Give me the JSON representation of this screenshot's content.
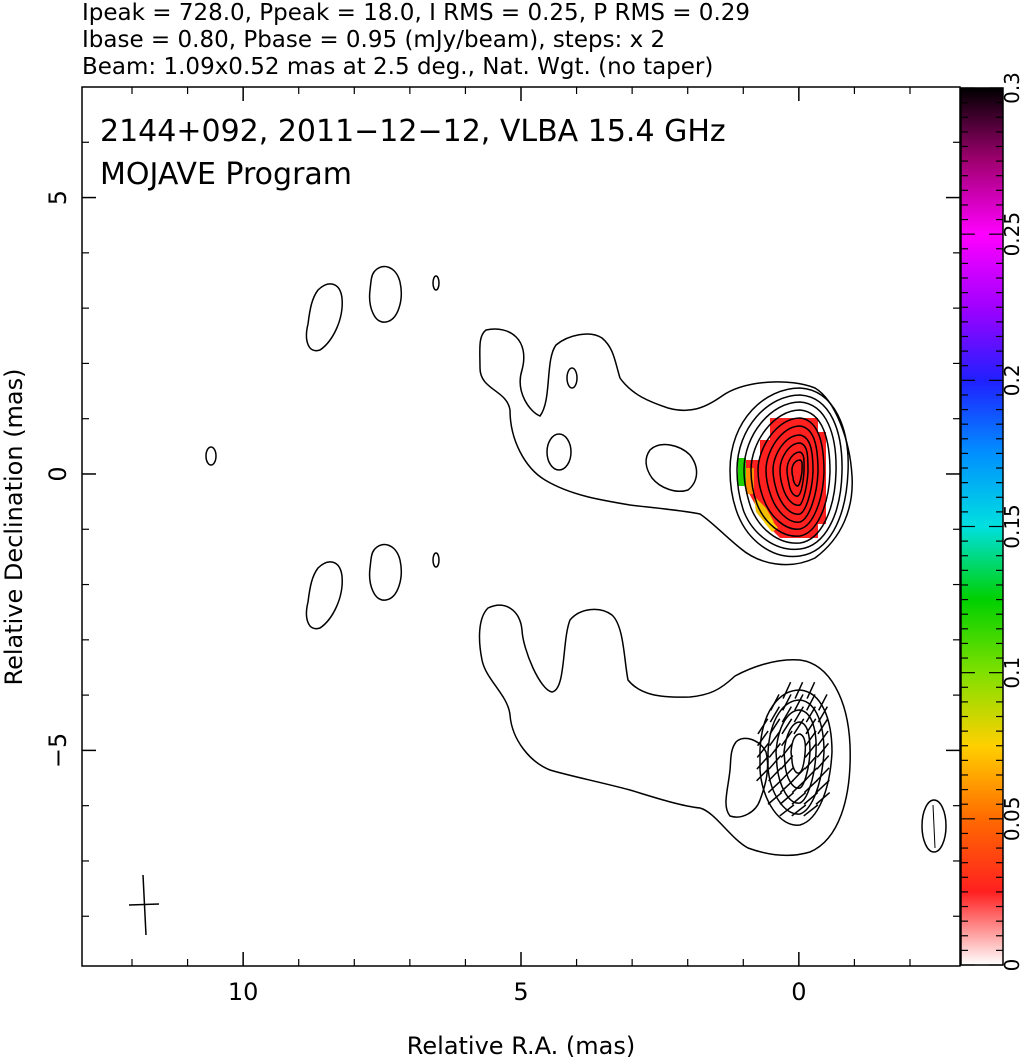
{
  "header": {
    "line1": "Ipeak = 728.0, Ppeak = 18.0, I RMS = 0.25, P RMS = 0.29",
    "line2": "Ibase = 0.80, Pbase = 0.95 (mJy/beam), steps: x 2",
    "line3": "Beam: 1.09x0.52 mas at 2.5 deg., Nat. Wgt. (no taper)"
  },
  "plot": {
    "title_line1": "2144+092, 2011−12−12, VLBA 15.4 GHz",
    "title_line2": "MOJAVE Program"
  },
  "chart_data": {
    "type": "contour",
    "xlabel": "Relative R.A. (mas)",
    "ylabel": "Relative Declination (mas)",
    "xlim": [
      12.9,
      -2.9
    ],
    "ylim": [
      -8.9,
      7.0
    ],
    "x_ticks": [
      {
        "value": 10,
        "label": "10"
      },
      {
        "value": 5,
        "label": "5"
      },
      {
        "value": 0,
        "label": "0"
      }
    ],
    "y_ticks": [
      {
        "value": 5,
        "label": "5"
      },
      {
        "value": 0,
        "label": "0"
      },
      {
        "value": -5,
        "label": "−5"
      }
    ],
    "colorbar": {
      "min": 0,
      "max": 0.3,
      "ticks": [
        {
          "value": 0,
          "label": "0"
        },
        {
          "value": 0.05,
          "label": "0.05"
        },
        {
          "value": 0.1,
          "label": "0.1"
        },
        {
          "value": 0.15,
          "label": "0.15"
        },
        {
          "value": 0.2,
          "label": "0.2"
        },
        {
          "value": 0.25,
          "label": "0.25"
        },
        {
          "value": 0.3,
          "label": "0.3"
        }
      ],
      "stops": [
        "#ffffff",
        "#ff2020",
        "#ff6a00",
        "#ffd000",
        "#80e000",
        "#00d000",
        "#00e0e0",
        "#0090ff",
        "#2020ff",
        "#a000ff",
        "#ff00ff",
        "#a00070",
        "#000000"
      ]
    },
    "upper_panel": {
      "core_center": [
        0,
        0
      ],
      "contours_mJy": [
        0.8,
        1.6,
        3.2,
        6.4,
        12.8,
        25.6,
        51.2,
        102.4,
        204.8,
        409.6
      ],
      "fractional_pol_region": {
        "center": [
          0,
          0
        ],
        "color": "#ff2020"
      }
    },
    "lower_panel": {
      "core_center": [
        0,
        -5.0
      ],
      "evpa_ticks": true
    },
    "beam": {
      "major_mas": 1.09,
      "minor_mas": 0.52,
      "pa_deg": 2.5,
      "position_mas": [
        11.9,
        -7.8
      ]
    }
  }
}
